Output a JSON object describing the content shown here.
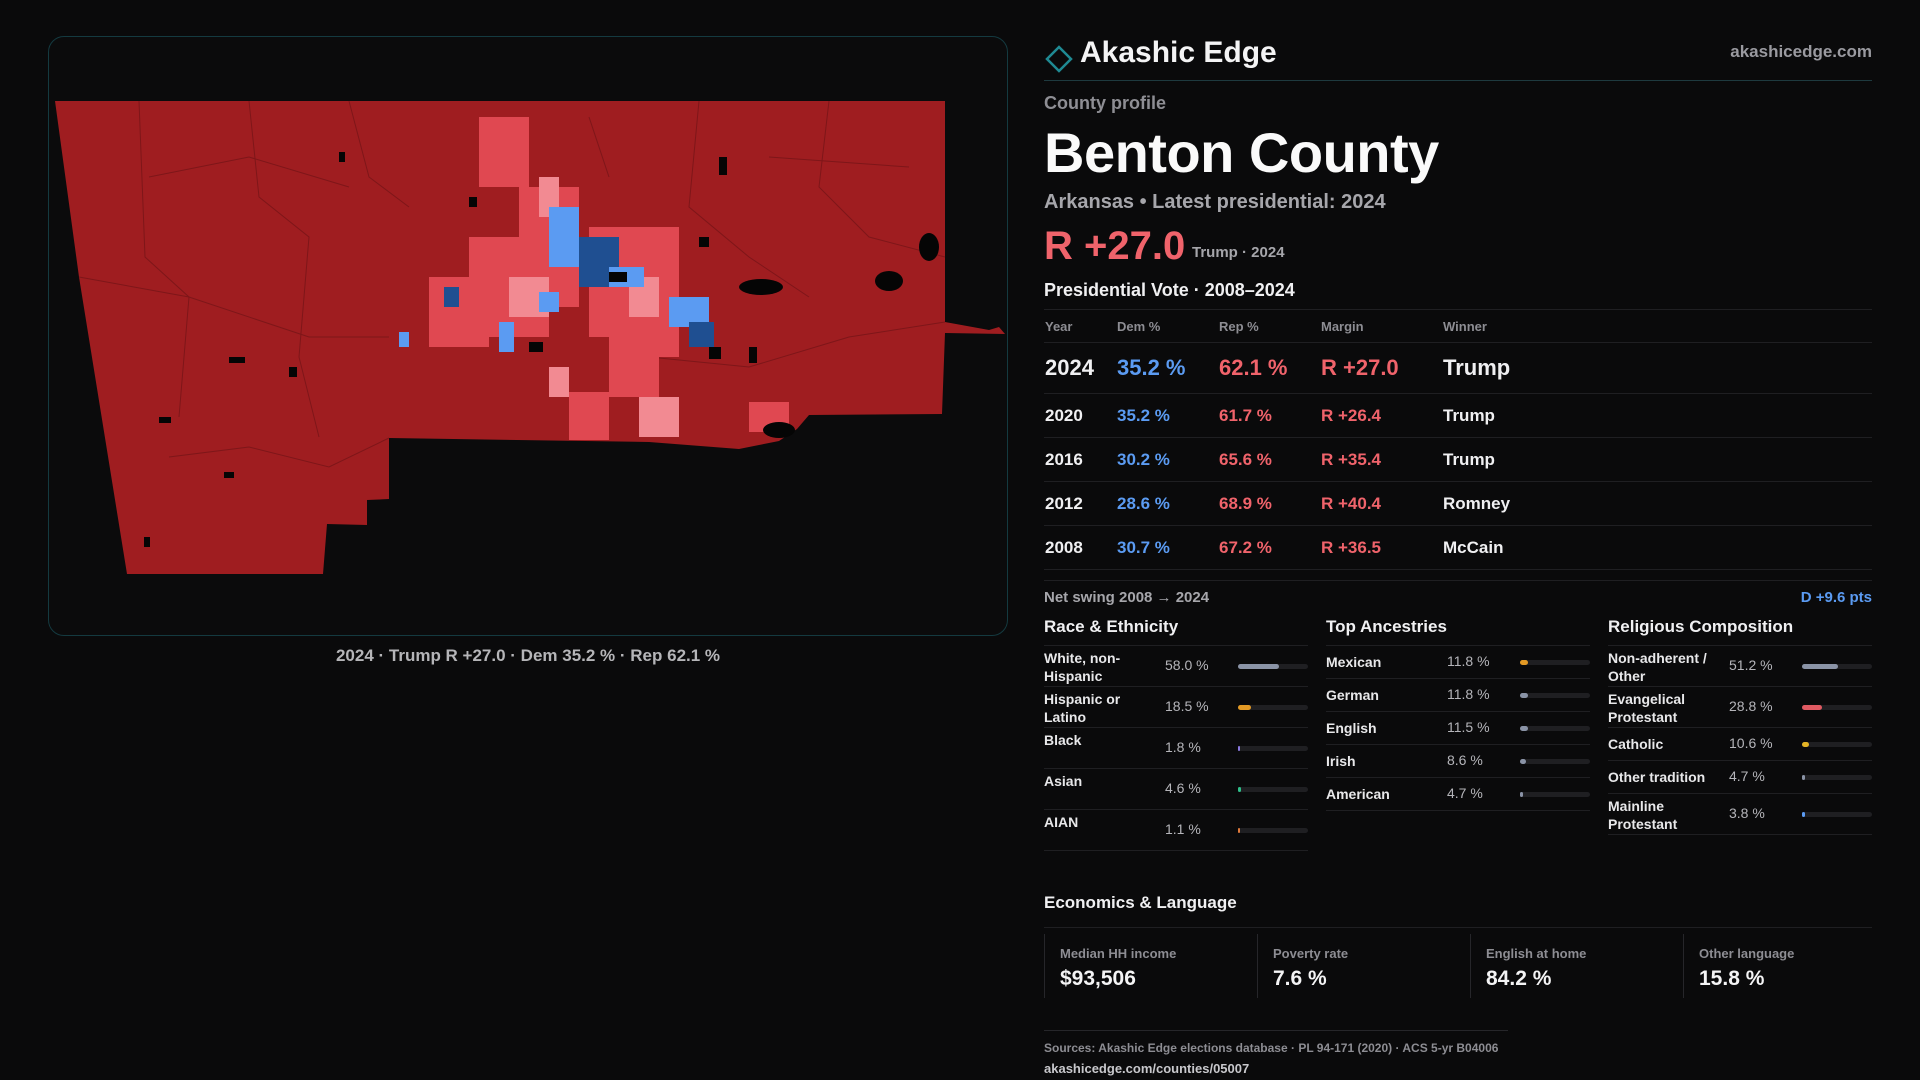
{
  "map": {
    "caption": "2024 · Trump R +27.0 · Dem 35.2 % · Rep 62.1 %",
    "colors": {
      "strong_rep": "#9f1d20",
      "lean_rep": "#e04851",
      "light_rep": "#f28a92",
      "lean_dem": "#5b9bf2",
      "strong_dem": "#1f4f91",
      "water": "#050505"
    }
  },
  "brand": {
    "name": "Akashic Edge",
    "url": "akashicedge.com",
    "accent": "#1f8a93"
  },
  "profile": {
    "kicker": "County profile",
    "county": "Benton County",
    "subtitle": "Arkansas • Latest presidential: 2024",
    "margin": "R +27.0",
    "margin_note": "Trump · 2024"
  },
  "vote": {
    "title": "Presidential Vote · 2008–2024",
    "headers": {
      "year": "Year",
      "dem": "Dem %",
      "rep": "Rep %",
      "margin": "Margin",
      "winner": "Winner"
    },
    "rows": [
      {
        "year": "2024",
        "dem": "35.2 %",
        "rep": "62.1 %",
        "margin": "R +27.0",
        "winner": "Trump"
      },
      {
        "year": "2020",
        "dem": "35.2 %",
        "rep": "61.7 %",
        "margin": "R +26.4",
        "winner": "Trump"
      },
      {
        "year": "2016",
        "dem": "30.2 %",
        "rep": "65.6 %",
        "margin": "R +35.4",
        "winner": "Trump"
      },
      {
        "year": "2012",
        "dem": "28.6 %",
        "rep": "68.9 %",
        "margin": "R +40.4",
        "winner": "Romney"
      },
      {
        "year": "2008",
        "dem": "30.7 %",
        "rep": "67.2 %",
        "margin": "R +36.5",
        "winner": "McCain"
      }
    ],
    "swing_label": "Net swing 2008 → 2024",
    "swing_value": "D +9.6 pts"
  },
  "race": {
    "title": "Race & Ethnicity",
    "rows": [
      {
        "label": "White, non-Hispanic",
        "value": "58.0 %",
        "pct": 58.0,
        "color": "#8a93a6"
      },
      {
        "label": "Hispanic or Latino",
        "value": "18.5 %",
        "pct": 18.5,
        "color": "#e39a25"
      },
      {
        "label": "Black",
        "value": "1.8 %",
        "pct": 1.8,
        "color": "#8a79e0"
      },
      {
        "label": "Asian",
        "value": "4.6 %",
        "pct": 4.6,
        "color": "#2fbf8a"
      },
      {
        "label": "AIAN",
        "value": "1.1 %",
        "pct": 1.1,
        "color": "#e07a3b"
      }
    ]
  },
  "ancestry": {
    "title": "Top Ancestries",
    "rows": [
      {
        "label": "Mexican",
        "value": "11.8 %",
        "pct": 11.8,
        "color": "#e39a25"
      },
      {
        "label": "German",
        "value": "11.8 %",
        "pct": 11.8,
        "color": "#8a93a6"
      },
      {
        "label": "English",
        "value": "11.5 %",
        "pct": 11.5,
        "color": "#8a93a6"
      },
      {
        "label": "Irish",
        "value": "8.6 %",
        "pct": 8.6,
        "color": "#8a93a6"
      },
      {
        "label": "American",
        "value": "4.7 %",
        "pct": 4.7,
        "color": "#8a93a6"
      }
    ]
  },
  "religion": {
    "title": "Religious Composition",
    "rows": [
      {
        "label": "Non-adherent / Other",
        "value": "51.2 %",
        "pct": 51.2,
        "color": "#8a93a6"
      },
      {
        "label": "Evangelical Protestant",
        "value": "28.8 %",
        "pct": 28.8,
        "color": "#e05a62"
      },
      {
        "label": "Catholic",
        "value": "10.6 %",
        "pct": 10.6,
        "color": "#e3b325"
      },
      {
        "label": "Other tradition",
        "value": "4.7 %",
        "pct": 4.7,
        "color": "#8a93a6"
      },
      {
        "label": "Mainline Protestant",
        "value": "3.8 %",
        "pct": 3.8,
        "color": "#5b9bf2"
      }
    ]
  },
  "econ": {
    "title": "Economics & Language",
    "cells": [
      {
        "label": "Median HH income",
        "value": "$93,506"
      },
      {
        "label": "Poverty rate",
        "value": "7.6 %"
      },
      {
        "label": "English at home",
        "value": "84.2 %"
      },
      {
        "label": "Other language",
        "value": "15.8 %"
      }
    ]
  },
  "sources": {
    "line": "Sources: Akashic Edge elections database · PL 94-171 (2020) · ACS 5-yr B04006",
    "url": "akashicedge.com/counties/05007"
  }
}
